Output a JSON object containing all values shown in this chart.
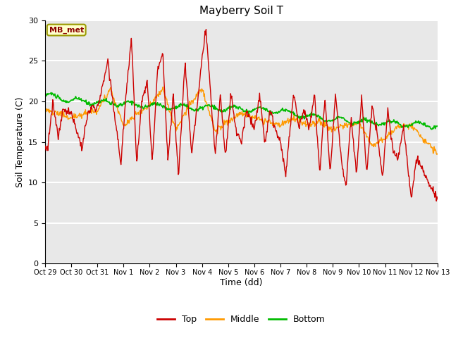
{
  "title": "Mayberry Soil T",
  "xlabel": "Time (dd)",
  "ylabel": "Soil Temperature (C)",
  "ylim": [
    0,
    30
  ],
  "xlim": [
    0,
    15
  ],
  "label_box_text": "MB_met",
  "label_box_color": "#ffffcc",
  "label_box_edge_color": "#999900",
  "label_text_color": "#8b0000",
  "bg_color": "#e8e8e8",
  "grid_color": "white",
  "tick_labels": [
    "Oct 29",
    "Oct 30",
    "Oct 31",
    "Nov 1",
    "Nov 2",
    "Nov 3",
    "Nov 4",
    "Nov 5",
    "Nov 6",
    "Nov 7",
    "Nov 8",
    "Nov 9",
    "Nov 10",
    "Nov 11",
    "Nov 12",
    "Nov 13"
  ],
  "tick_positions": [
    0,
    1,
    2,
    3,
    4,
    5,
    6,
    7,
    8,
    9,
    10,
    11,
    12,
    13,
    14,
    15
  ],
  "series_colors": {
    "top": "#cc0000",
    "middle": "#ff9900",
    "bottom": "#00bb00"
  },
  "legend_labels": [
    "Top",
    "Middle",
    "Bottom"
  ],
  "figsize": [
    6.4,
    4.8
  ],
  "dpi": 100
}
